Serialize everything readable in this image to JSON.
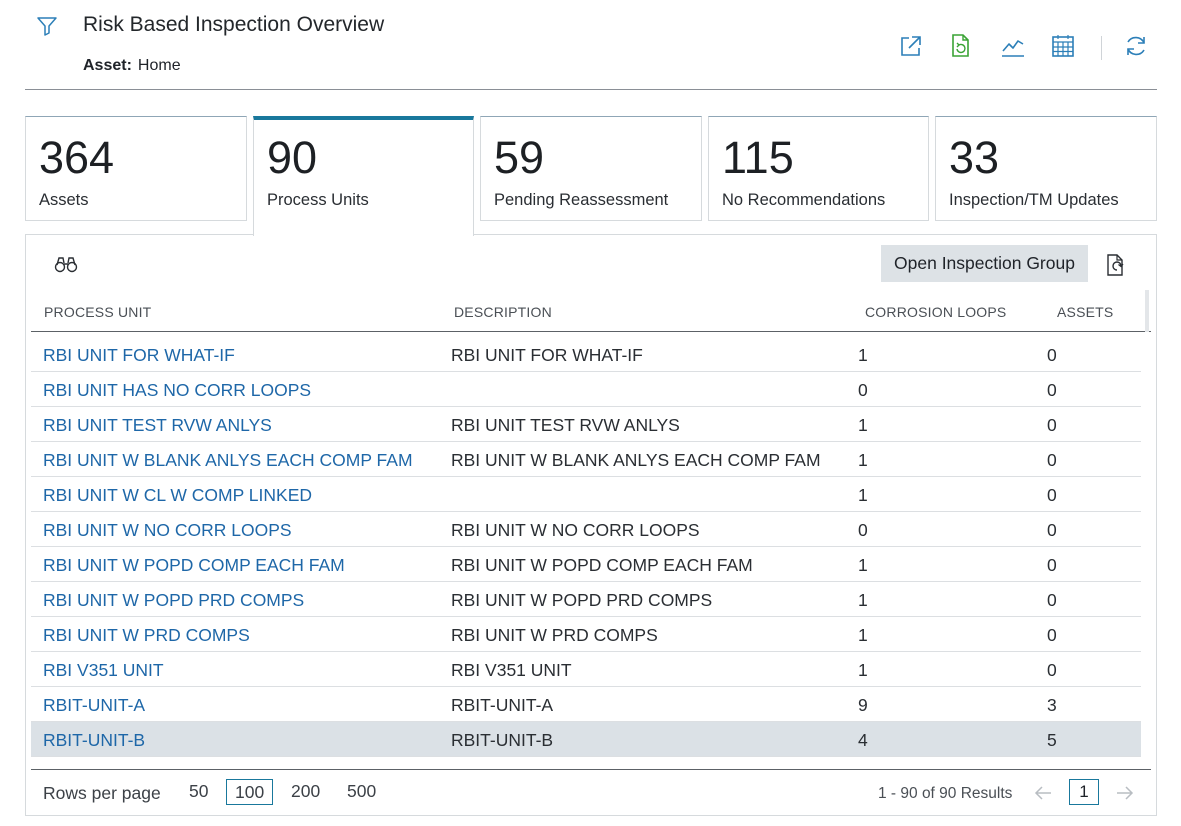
{
  "header": {
    "title": "Risk Based Inspection Overview",
    "asset_label": "Asset:",
    "asset_value": "Home"
  },
  "colors": {
    "accent": "#19789c",
    "link": "#1e67a8",
    "green_icon": "#3aa335",
    "selected_row": "#dbe1e6"
  },
  "toolbar": {
    "icons": [
      "open-external-icon",
      "refresh-sheet-icon",
      "trend-chart-icon",
      "calendar-icon",
      "refresh-icon"
    ]
  },
  "tiles": [
    {
      "value": "364",
      "label": "Assets"
    },
    {
      "value": "90",
      "label": "Process Units"
    },
    {
      "value": "59",
      "label": "Pending Reassessment"
    },
    {
      "value": "115",
      "label": "No Recommendations"
    },
    {
      "value": "33",
      "label": "Inspection/TM Updates"
    }
  ],
  "panel": {
    "open_button": "Open Inspection Group",
    "columns": [
      "PROCESS UNIT",
      "DESCRIPTION",
      "CORROSION LOOPS",
      "ASSETS"
    ],
    "rows": [
      {
        "name": "RBI UNIT FOR WHAT-IF",
        "desc": "RBI UNIT FOR WHAT-IF",
        "loops": "1",
        "assets": "0"
      },
      {
        "name": "RBI UNIT HAS NO CORR LOOPS",
        "desc": "",
        "loops": "0",
        "assets": "0"
      },
      {
        "name": "RBI UNIT TEST RVW ANLYS",
        "desc": "RBI UNIT TEST RVW ANLYS",
        "loops": "1",
        "assets": "0"
      },
      {
        "name": "RBI UNIT W BLANK ANLYS EACH COMP FAM",
        "desc": "RBI UNIT W BLANK ANLYS EACH COMP FAM",
        "loops": "1",
        "assets": "0"
      },
      {
        "name": "RBI UNIT W CL W COMP LINKED",
        "desc": "",
        "loops": "1",
        "assets": "0"
      },
      {
        "name": "RBI UNIT W NO CORR LOOPS",
        "desc": "RBI UNIT W NO CORR LOOPS",
        "loops": "0",
        "assets": "0"
      },
      {
        "name": "RBI UNIT W POPD COMP EACH FAM",
        "desc": "RBI UNIT W POPD COMP EACH FAM",
        "loops": "1",
        "assets": "0"
      },
      {
        "name": "RBI UNIT W POPD PRD COMPS",
        "desc": "RBI UNIT W POPD PRD COMPS",
        "loops": "1",
        "assets": "0"
      },
      {
        "name": "RBI UNIT W PRD COMPS",
        "desc": "RBI UNIT W PRD COMPS",
        "loops": "1",
        "assets": "0"
      },
      {
        "name": "RBI V351 UNIT",
        "desc": "RBI V351 UNIT",
        "loops": "1",
        "assets": "0"
      },
      {
        "name": "RBIT-UNIT-A",
        "desc": "RBIT-UNIT-A",
        "loops": "9",
        "assets": "3"
      },
      {
        "name": "RBIT-UNIT-B",
        "desc": "RBIT-UNIT-B",
        "loops": "4",
        "assets": "5"
      }
    ]
  },
  "footer": {
    "rows_per_page_label": "Rows per page",
    "options": [
      "50",
      "100",
      "200",
      "500"
    ],
    "results": "1 - 90 of 90 Results",
    "page": "1"
  }
}
